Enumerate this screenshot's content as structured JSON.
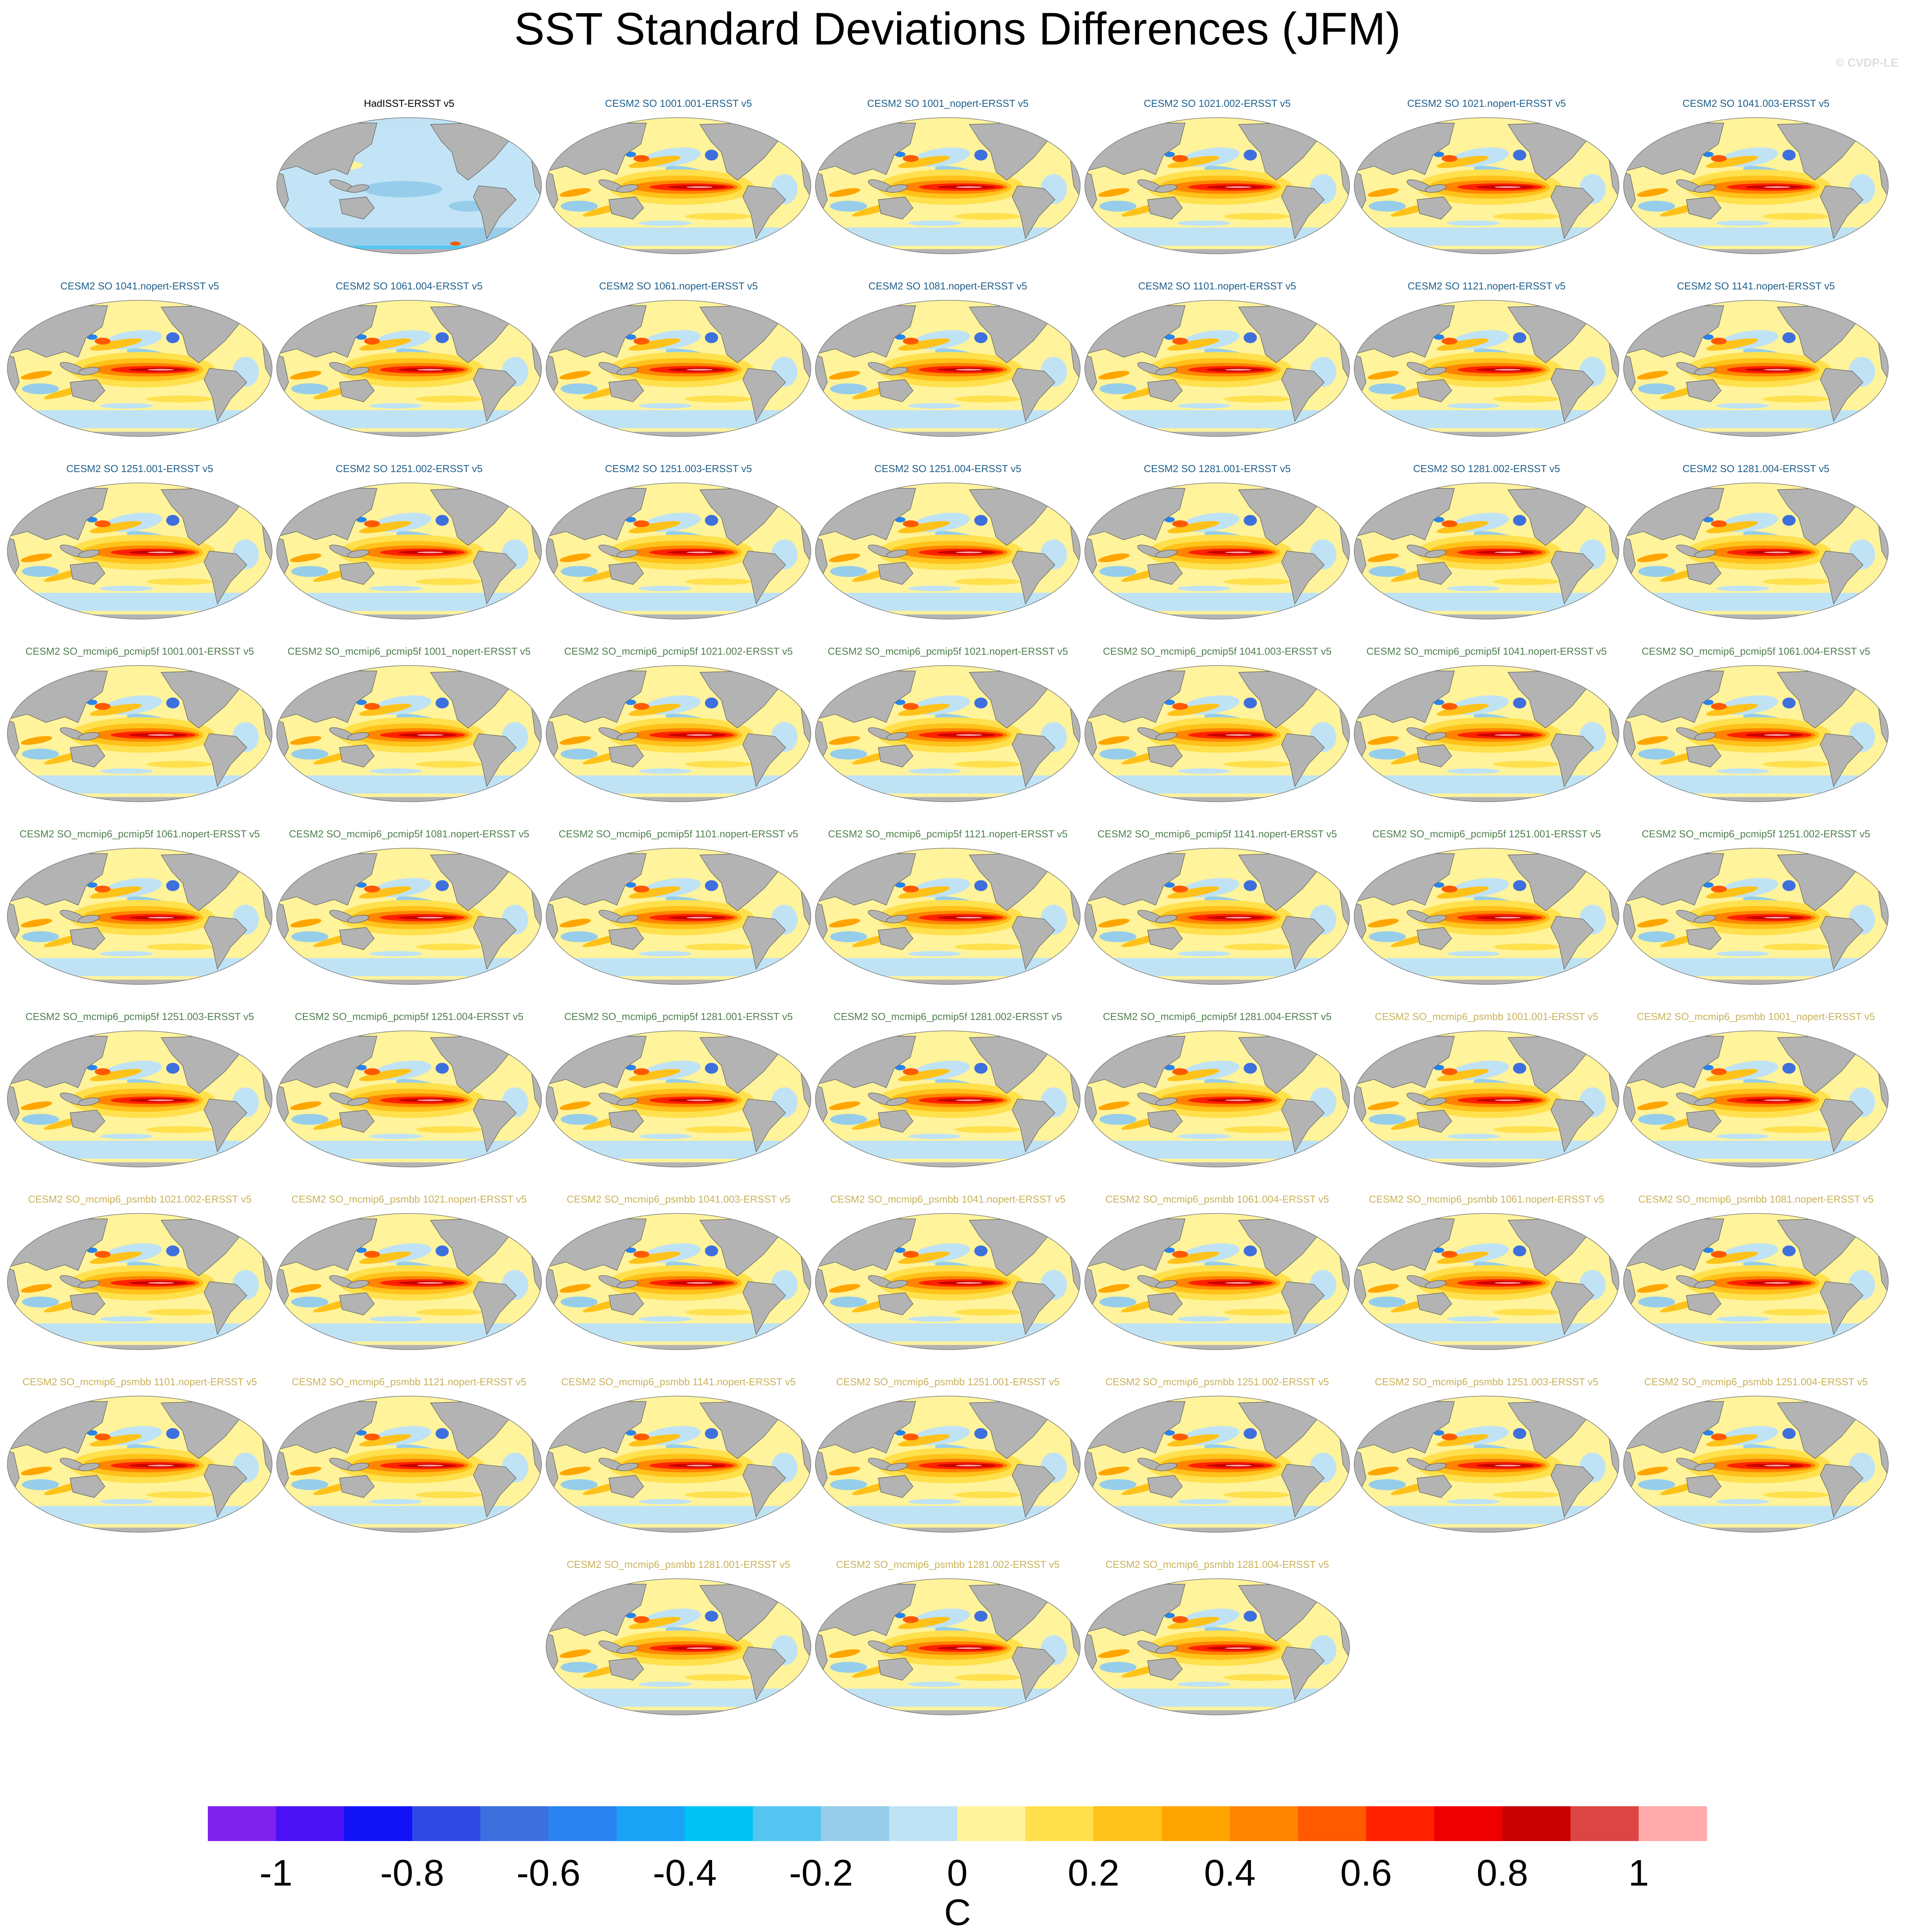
{
  "title": "SST Standard Deviations Differences (JFM)",
  "watermark": "© CVDP-LE",
  "colors": {
    "title_observations": "#000000",
    "title_group_cesm2_so": "#1f5f8b",
    "title_group_pcmip5f": "#4f7f4f",
    "title_group_psmbb": "#c9b25a",
    "land": "#b3b3b3",
    "coastline": "#555555"
  },
  "chart_data": {
    "type": "heatmap",
    "description_variable": "SST standard deviation difference, model minus ERSST v5",
    "season": "JFM",
    "panels": [
      {
        "title": "HadISST-ERSST v5",
        "group": "observations"
      },
      {
        "title": "CESM2 SO 1001.001-ERSST v5",
        "group": "cesm2_so"
      },
      {
        "title": "CESM2 SO 1001_nopert-ERSST v5",
        "group": "cesm2_so"
      },
      {
        "title": "CESM2 SO 1021.002-ERSST v5",
        "group": "cesm2_so"
      },
      {
        "title": "CESM2 SO 1021.nopert-ERSST v5",
        "group": "cesm2_so"
      },
      {
        "title": "CESM2 SO 1041.003-ERSST v5",
        "group": "cesm2_so"
      },
      {
        "title": "CESM2 SO 1041.nopert-ERSST v5",
        "group": "cesm2_so"
      },
      {
        "title": "CESM2 SO 1061.004-ERSST v5",
        "group": "cesm2_so"
      },
      {
        "title": "CESM2 SO 1061.nopert-ERSST v5",
        "group": "cesm2_so"
      },
      {
        "title": "CESM2 SO 1081.nopert-ERSST v5",
        "group": "cesm2_so"
      },
      {
        "title": "CESM2 SO 1101.nopert-ERSST v5",
        "group": "cesm2_so"
      },
      {
        "title": "CESM2 SO 1121.nopert-ERSST v5",
        "group": "cesm2_so"
      },
      {
        "title": "CESM2 SO 1141.nopert-ERSST v5",
        "group": "cesm2_so"
      },
      {
        "title": "CESM2 SO 1251.001-ERSST v5",
        "group": "cesm2_so"
      },
      {
        "title": "CESM2 SO 1251.002-ERSST v5",
        "group": "cesm2_so"
      },
      {
        "title": "CESM2 SO 1251.003-ERSST v5",
        "group": "cesm2_so"
      },
      {
        "title": "CESM2 SO 1251.004-ERSST v5",
        "group": "cesm2_so"
      },
      {
        "title": "CESM2 SO 1281.001-ERSST v5",
        "group": "cesm2_so"
      },
      {
        "title": "CESM2 SO 1281.002-ERSST v5",
        "group": "cesm2_so"
      },
      {
        "title": "CESM2 SO 1281.004-ERSST v5",
        "group": "cesm2_so"
      },
      {
        "title": "CESM2 SO_mcmip6_pcmip5f 1001.001-ERSST v5",
        "group": "pcmip5f"
      },
      {
        "title": "CESM2 SO_mcmip6_pcmip5f 1001_nopert-ERSST v5",
        "group": "pcmip5f"
      },
      {
        "title": "CESM2 SO_mcmip6_pcmip5f 1021.002-ERSST v5",
        "group": "pcmip5f"
      },
      {
        "title": "CESM2 SO_mcmip6_pcmip5f 1021.nopert-ERSST v5",
        "group": "pcmip5f"
      },
      {
        "title": "CESM2 SO_mcmip6_pcmip5f 1041.003-ERSST v5",
        "group": "pcmip5f"
      },
      {
        "title": "CESM2 SO_mcmip6_pcmip5f 1041.nopert-ERSST v5",
        "group": "pcmip5f"
      },
      {
        "title": "CESM2 SO_mcmip6_pcmip5f 1061.004-ERSST v5",
        "group": "pcmip5f"
      },
      {
        "title": "CESM2 SO_mcmip6_pcmip5f 1061.nopert-ERSST v5",
        "group": "pcmip5f"
      },
      {
        "title": "CESM2 SO_mcmip6_pcmip5f 1081.nopert-ERSST v5",
        "group": "pcmip5f"
      },
      {
        "title": "CESM2 SO_mcmip6_pcmip5f 1101.nopert-ERSST v5",
        "group": "pcmip5f"
      },
      {
        "title": "CESM2 SO_mcmip6_pcmip5f 1121.nopert-ERSST v5",
        "group": "pcmip5f"
      },
      {
        "title": "CESM2 SO_mcmip6_pcmip5f 1141.nopert-ERSST v5",
        "group": "pcmip5f"
      },
      {
        "title": "CESM2 SO_mcmip6_pcmip5f 1251.001-ERSST v5",
        "group": "pcmip5f"
      },
      {
        "title": "CESM2 SO_mcmip6_pcmip5f 1251.002-ERSST v5",
        "group": "pcmip5f"
      },
      {
        "title": "CESM2 SO_mcmip6_pcmip5f 1251.003-ERSST v5",
        "group": "pcmip5f"
      },
      {
        "title": "CESM2 SO_mcmip6_pcmip5f 1251.004-ERSST v5",
        "group": "pcmip5f"
      },
      {
        "title": "CESM2 SO_mcmip6_pcmip5f 1281.001-ERSST v5",
        "group": "pcmip5f"
      },
      {
        "title": "CESM2 SO_mcmip6_pcmip5f 1281.002-ERSST v5",
        "group": "pcmip5f"
      },
      {
        "title": "CESM2 SO_mcmip6_pcmip5f 1281.004-ERSST v5",
        "group": "pcmip5f"
      },
      {
        "title": "CESM2 SO_mcmip6_psmbb 1001.001-ERSST v5",
        "group": "psmbb"
      },
      {
        "title": "CESM2 SO_mcmip6_psmbb 1001_nopert-ERSST v5",
        "group": "psmbb"
      },
      {
        "title": "CESM2 SO_mcmip6_psmbb 1021.002-ERSST v5",
        "group": "psmbb"
      },
      {
        "title": "CESM2 SO_mcmip6_psmbb 1021.nopert-ERSST v5",
        "group": "psmbb"
      },
      {
        "title": "CESM2 SO_mcmip6_psmbb 1041.003-ERSST v5",
        "group": "psmbb"
      },
      {
        "title": "CESM2 SO_mcmip6_psmbb 1041.nopert-ERSST v5",
        "group": "psmbb"
      },
      {
        "title": "CESM2 SO_mcmip6_psmbb 1061.004-ERSST v5",
        "group": "psmbb"
      },
      {
        "title": "CESM2 SO_mcmip6_psmbb 1061.nopert-ERSST v5",
        "group": "psmbb"
      },
      {
        "title": "CESM2 SO_mcmip6_psmbb 1081.nopert-ERSST v5",
        "group": "psmbb"
      },
      {
        "title": "CESM2 SO_mcmip6_psmbb 1101.nopert-ERSST v5",
        "group": "psmbb"
      },
      {
        "title": "CESM2 SO_mcmip6_psmbb 1121.nopert-ERSST v5",
        "group": "psmbb"
      },
      {
        "title": "CESM2 SO_mcmip6_psmbb 1141.nopert-ERSST v5",
        "group": "psmbb"
      },
      {
        "title": "CESM2 SO_mcmip6_psmbb 1251.001-ERSST v5",
        "group": "psmbb"
      },
      {
        "title": "CESM2 SO_mcmip6_psmbb 1251.002-ERSST v5",
        "group": "psmbb"
      },
      {
        "title": "CESM2 SO_mcmip6_psmbb 1251.003-ERSST v5",
        "group": "psmbb"
      },
      {
        "title": "CESM2 SO_mcmip6_psmbb 1251.004-ERSST v5",
        "group": "psmbb"
      },
      {
        "title": "CESM2 SO_mcmip6_psmbb 1281.001-ERSST v5",
        "group": "psmbb"
      },
      {
        "title": "CESM2 SO_mcmip6_psmbb 1281.002-ERSST v5",
        "group": "psmbb"
      },
      {
        "title": "CESM2 SO_mcmip6_psmbb 1281.004-ERSST v5",
        "group": "psmbb"
      }
    ],
    "colorbar": {
      "unit_label": "C",
      "range": [
        -1.1,
        1.1
      ],
      "levels": [
        -1,
        -0.9,
        -0.8,
        -0.7,
        -0.6,
        -0.5,
        -0.4,
        -0.3,
        -0.2,
        -0.1,
        0,
        0.1,
        0.2,
        0.3,
        0.4,
        0.5,
        0.6,
        0.7,
        0.8,
        0.9,
        1
      ],
      "colors": [
        "#7f22ee",
        "#4a11f5",
        "#1212f7",
        "#2f4ae4",
        "#3d6fdf",
        "#2a84f0",
        "#1aa2f5",
        "#00c3f5",
        "#55c6f2",
        "#96cdeb",
        "#bfe3f5",
        "#fff39b",
        "#ffe04d",
        "#ffc21a",
        "#ffa500",
        "#ff8500",
        "#ff5a00",
        "#ff2200",
        "#ee0000",
        "#c80000",
        "#dd4444",
        "#ffaaaa"
      ],
      "tick_values": [
        -1,
        -0.8,
        -0.6,
        -0.4,
        -0.2,
        0,
        0.2,
        0.4,
        0.6,
        0.8,
        1
      ],
      "tick_labels": [
        "-1",
        "-0.8",
        "-0.6",
        "-0.4",
        "-0.2",
        "0",
        "0.2",
        "0.4",
        "0.6",
        "0.8",
        "1"
      ]
    }
  }
}
